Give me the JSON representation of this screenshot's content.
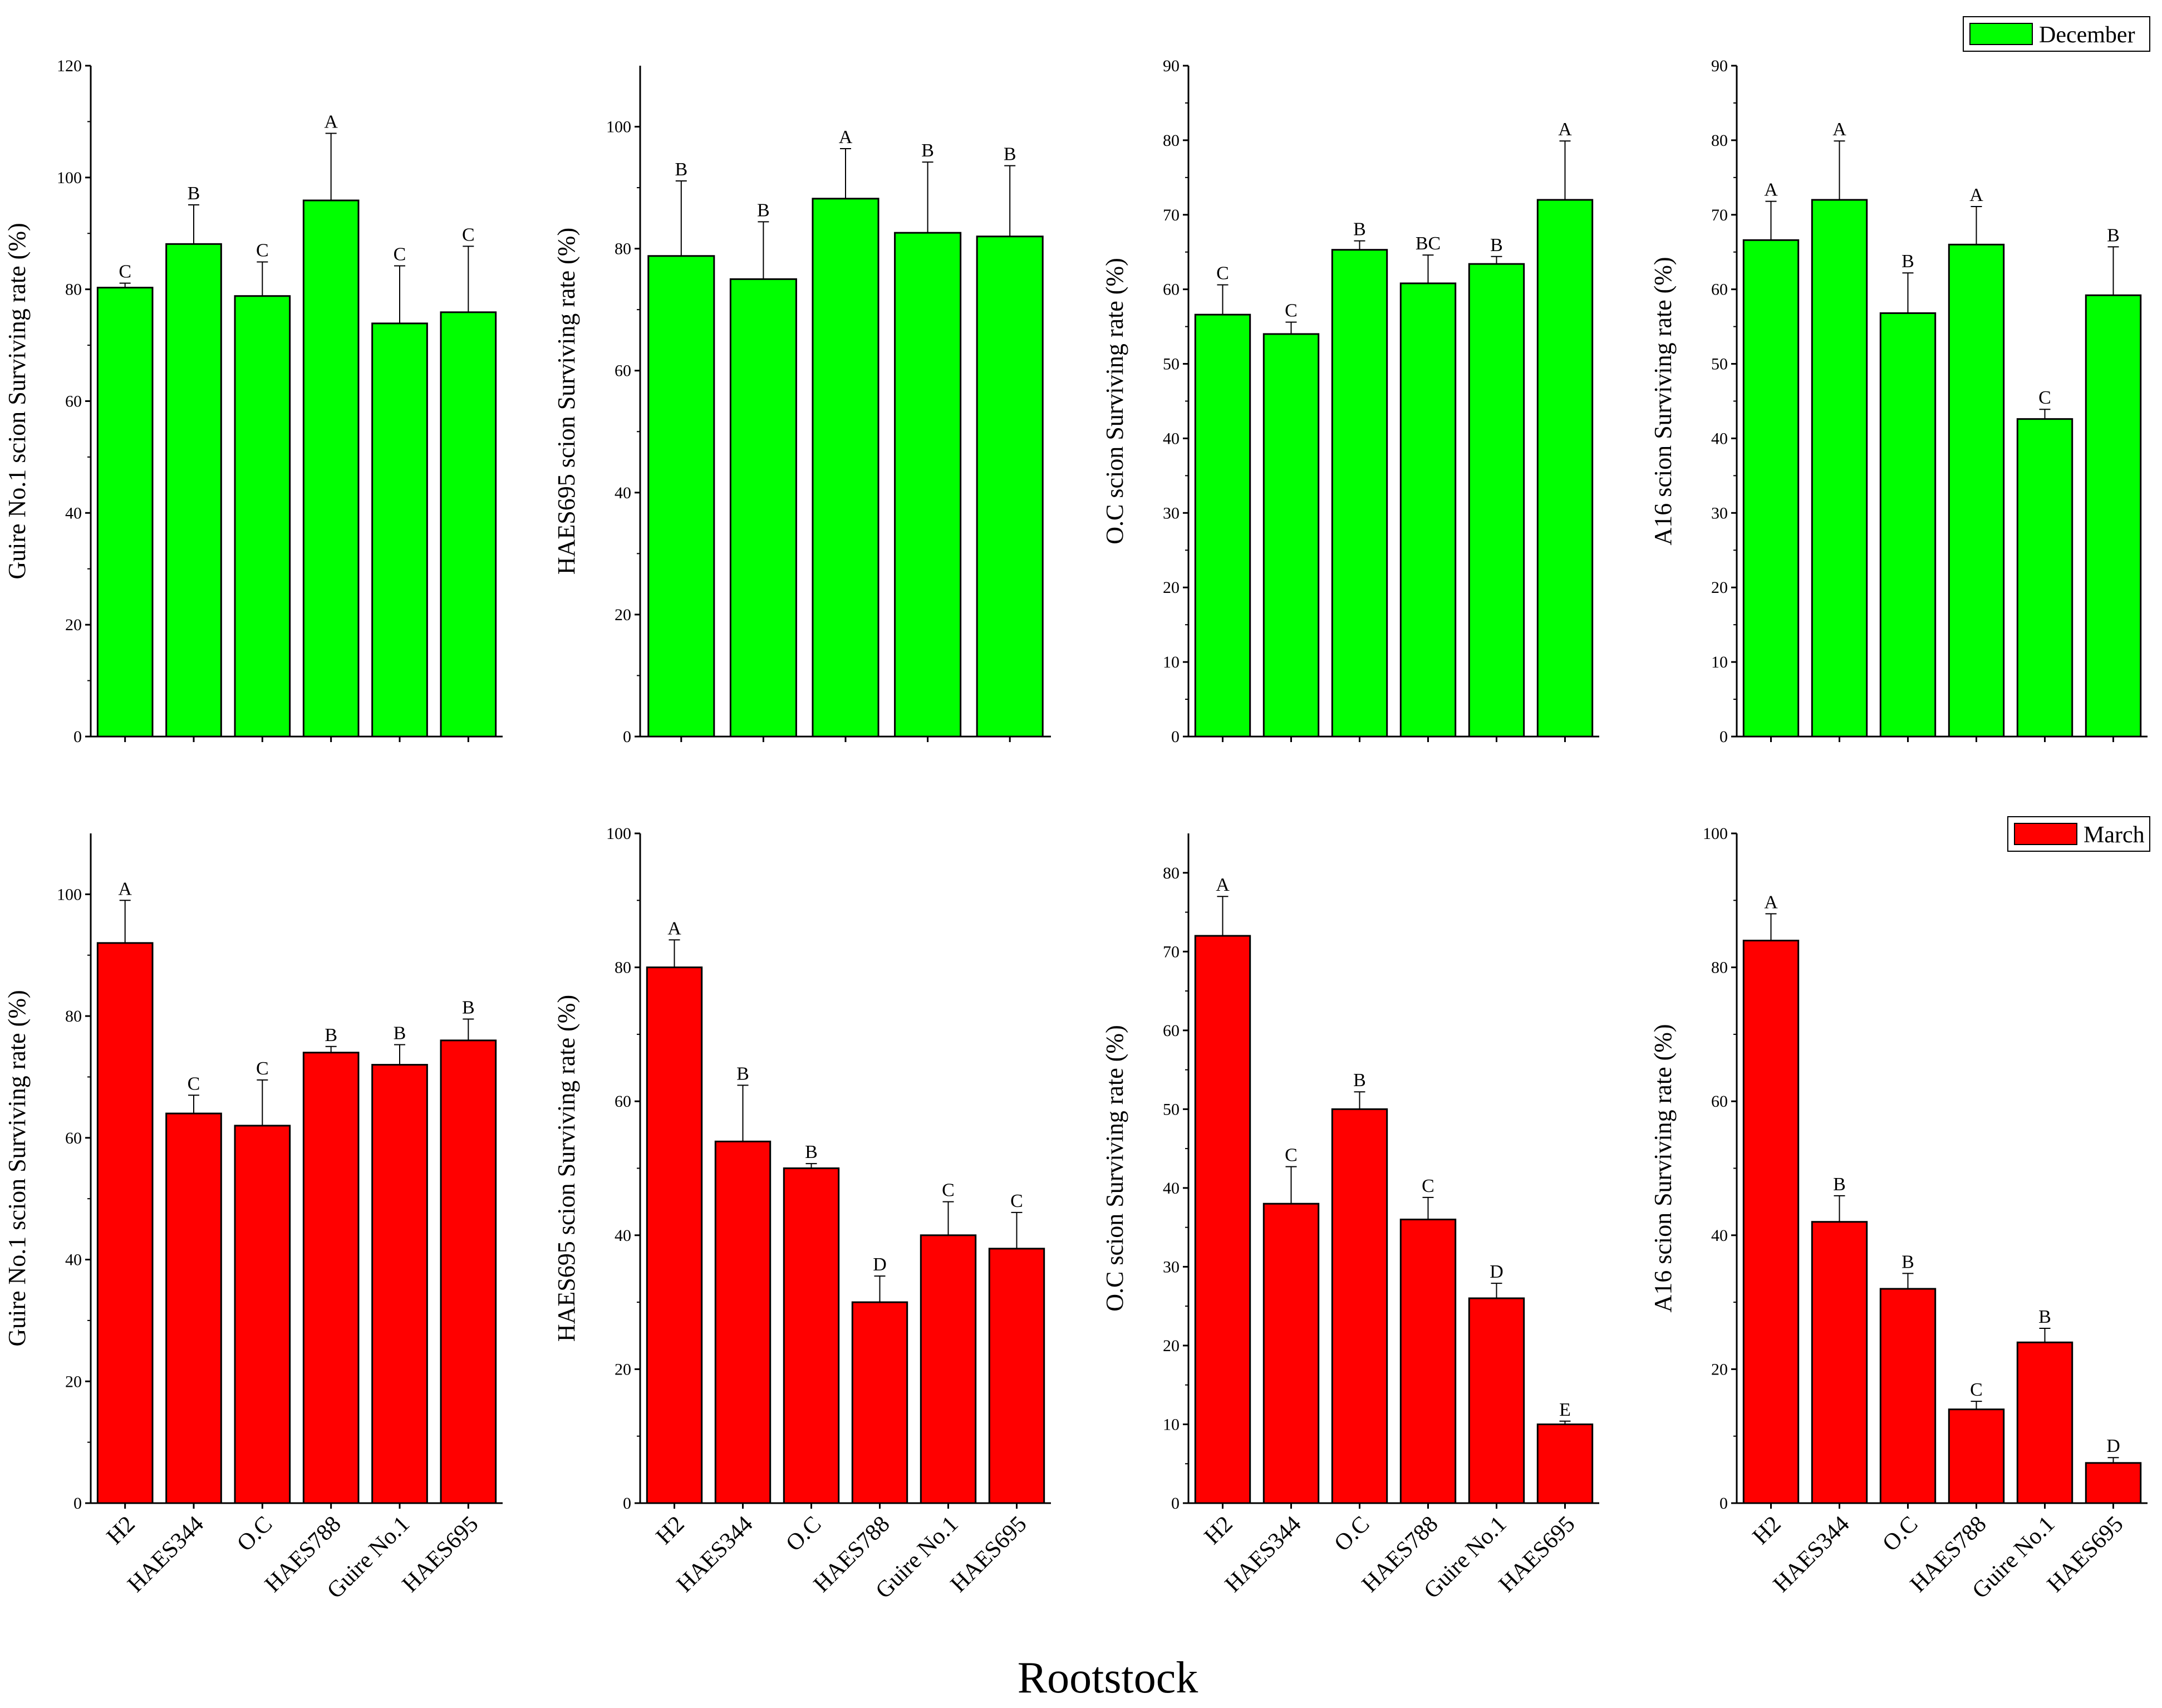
{
  "figure": {
    "xlabel": "Rootstock",
    "categories": [
      "H2",
      "HAES344",
      "O.C",
      "HAES788",
      "Guire No.1",
      "HAES695"
    ],
    "colors": {
      "December": "#00ff00",
      "March": "#ff0000",
      "axis": "#000000"
    }
  },
  "chart_data": [
    {
      "type": "bar",
      "title": "",
      "month": "December",
      "ylabel": "Guire No.1 scion Surviving rate (%)",
      "categories": [
        "H2",
        "HAES344",
        "O.C",
        "HAES788",
        "Guire No.1",
        "HAES695"
      ],
      "values": [
        80.3,
        88.1,
        78.8,
        95.9,
        73.9,
        75.9
      ],
      "errors": [
        0.8,
        7.0,
        6.1,
        12.0,
        10.3,
        11.8
      ],
      "letters": [
        "C",
        "B",
        "C",
        "A",
        "C",
        "C"
      ],
      "ylim": [
        0,
        120
      ],
      "yticks": [
        0,
        20,
        40,
        60,
        80,
        100,
        120
      ]
    },
    {
      "type": "bar",
      "title": "",
      "month": "December",
      "ylabel": "HAES695 scion Surviving rate (%)",
      "categories": [
        "HAES344",
        "O.C",
        "HAES788",
        "Guire No.1",
        "HAES695"
      ],
      "values": [
        78.8,
        75.0,
        88.2,
        82.6,
        82.0
      ],
      "errors": [
        12.3,
        9.4,
        8.2,
        11.6,
        11.6
      ],
      "letters": [
        "B",
        "B",
        "A",
        "B",
        "B"
      ],
      "ylim": [
        0,
        110
      ],
      "yticks": [
        0,
        20,
        40,
        60,
        80,
        100
      ]
    },
    {
      "type": "bar",
      "title": "",
      "month": "December",
      "ylabel": "O.C scion Surviving rate (%)",
      "categories": [
        "H2",
        "HAES344",
        "O.C",
        "HAES788",
        "Guire No.1",
        "HAES695"
      ],
      "values": [
        56.6,
        54.0,
        65.3,
        60.8,
        63.4,
        72.0
      ],
      "errors": [
        4.0,
        1.6,
        1.2,
        3.8,
        1.0,
        7.9
      ],
      "letters": [
        "C",
        "C",
        "B",
        "BC",
        "B",
        "A"
      ],
      "ylim": [
        0,
        90
      ],
      "yticks": [
        0,
        10,
        20,
        30,
        40,
        50,
        60,
        70,
        80,
        90
      ]
    },
    {
      "type": "bar",
      "title": "",
      "month": "December",
      "ylabel": "A16 scion Surviving rate (%)",
      "categories": [
        "H2",
        "HAES344",
        "O.C",
        "HAES788",
        "Guire No.1",
        "HAES695"
      ],
      "values": [
        66.6,
        72.0,
        56.8,
        66.0,
        42.6,
        59.2
      ],
      "errors": [
        5.2,
        7.9,
        5.4,
        5.1,
        1.3,
        6.5
      ],
      "letters": [
        "A",
        "A",
        "B",
        "A",
        "C",
        "B"
      ],
      "ylim": [
        0,
        90
      ],
      "yticks": [
        0,
        10,
        20,
        30,
        40,
        50,
        60,
        70,
        80,
        90
      ],
      "legend": "December",
      "legend_position": "top-right"
    },
    {
      "type": "bar",
      "title": "",
      "month": "March",
      "ylabel": "Guire No.1 scion Surviving rate (%)",
      "categories": [
        "H2",
        "HAES344",
        "O.C",
        "HAES788",
        "Guire No.1",
        "HAES695"
      ],
      "values": [
        92.0,
        64.0,
        62.0,
        74.0,
        72.0,
        76.0
      ],
      "errors": [
        7.0,
        3.0,
        7.5,
        1.0,
        3.3,
        3.5
      ],
      "letters": [
        "A",
        "C",
        "C",
        "B",
        "B",
        "B"
      ],
      "ylim": [
        0,
        110
      ],
      "yticks": [
        0,
        20,
        40,
        60,
        80,
        100
      ]
    },
    {
      "type": "bar",
      "title": "",
      "month": "March",
      "ylabel": "HAES695 scion Surviving rate (%)",
      "categories": [
        "H2",
        "HAES344",
        "O.C",
        "HAES788",
        "Guire No.1",
        "HAES695"
      ],
      "values": [
        80.0,
        54.0,
        50.0,
        30.0,
        40.0,
        38.0
      ],
      "errors": [
        4.1,
        8.4,
        0.7,
        3.9,
        5.0,
        5.4
      ],
      "letters": [
        "A",
        "B",
        "B",
        "D",
        "C",
        "C"
      ],
      "ylim": [
        0,
        100
      ],
      "yticks": [
        0,
        20,
        40,
        60,
        80,
        100
      ]
    },
    {
      "type": "bar",
      "title": "",
      "month": "March",
      "ylabel": "O.C scion Surviving rate (%)",
      "categories": [
        "H2",
        "HAES344",
        "O.C",
        "HAES788",
        "Guire No.1",
        "HAES695"
      ],
      "values": [
        72.0,
        38.0,
        50.0,
        36.0,
        26.0,
        10.0
      ],
      "errors": [
        5.0,
        4.7,
        2.2,
        2.8,
        1.9,
        0.4
      ],
      "letters": [
        "A",
        "C",
        "B",
        "C",
        "D",
        "E"
      ],
      "ylim": [
        0,
        85
      ],
      "yticks": [
        0,
        10,
        20,
        30,
        40,
        50,
        60,
        70,
        80
      ]
    },
    {
      "type": "bar",
      "title": "",
      "month": "March",
      "ylabel": "A16 scion Surviving rate (%)",
      "categories": [
        "H2",
        "HAES344",
        "O.C",
        "HAES788",
        "Guire No.1",
        "HAES695"
      ],
      "values": [
        84.0,
        42.0,
        32.0,
        14.0,
        24.0,
        6.0
      ],
      "errors": [
        4.0,
        3.9,
        2.3,
        1.2,
        2.1,
        0.8
      ],
      "letters": [
        "A",
        "B",
        "B",
        "C",
        "B",
        "D"
      ],
      "ylim": [
        0,
        100
      ],
      "yticks": [
        0,
        20,
        40,
        60,
        80,
        100
      ],
      "legend": "March",
      "legend_position": "top-right"
    }
  ]
}
